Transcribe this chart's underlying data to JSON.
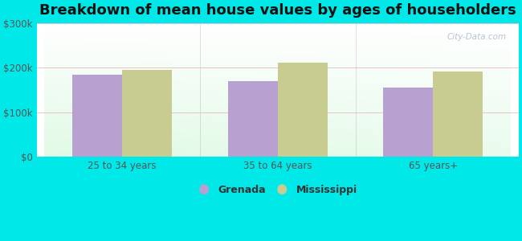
{
  "title": "Breakdown of mean house values by ages of householders",
  "categories": [
    "25 to 34 years",
    "35 to 64 years",
    "65 years+"
  ],
  "grenada_values": [
    185000,
    170000,
    155000
  ],
  "mississippi_values": [
    196000,
    212000,
    191000
  ],
  "grenada_color": "#b8a0d0",
  "mississippi_color": "#c8cc90",
  "ylim": [
    0,
    300000
  ],
  "yticks": [
    0,
    100000,
    200000,
    300000
  ],
  "ytick_labels": [
    "$0",
    "$100k",
    "$200k",
    "$300k"
  ],
  "bar_width": 0.32,
  "legend_labels": [
    "Grenada",
    "Mississippi"
  ],
  "title_fontsize": 13,
  "watermark": "City-Data.com",
  "cyan_bg": "#00e8e8",
  "tick_color": "#555555",
  "grid_color": "#e8b8c0",
  "separator_color": "#aaaaaa"
}
